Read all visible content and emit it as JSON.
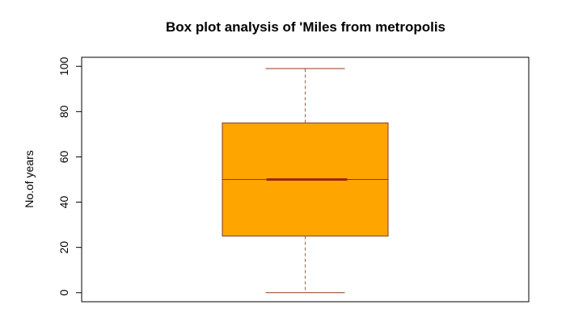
{
  "chart_data": {
    "type": "boxplot",
    "title": "Box plot analysis of 'Miles from metropolis",
    "xlabel": "",
    "ylabel": "No.of years",
    "ylim": [
      -4,
      104
    ],
    "yticks": [
      0,
      20,
      40,
      60,
      80,
      100
    ],
    "grid": false,
    "box": {
      "min": 0,
      "q1": 25,
      "median": 50,
      "q3": 75,
      "max": 99
    },
    "colors": {
      "box_fill": "#FFA500",
      "box_border": "#8B3A1A",
      "median": "#A0260E",
      "whisker": "#C0504D"
    }
  }
}
